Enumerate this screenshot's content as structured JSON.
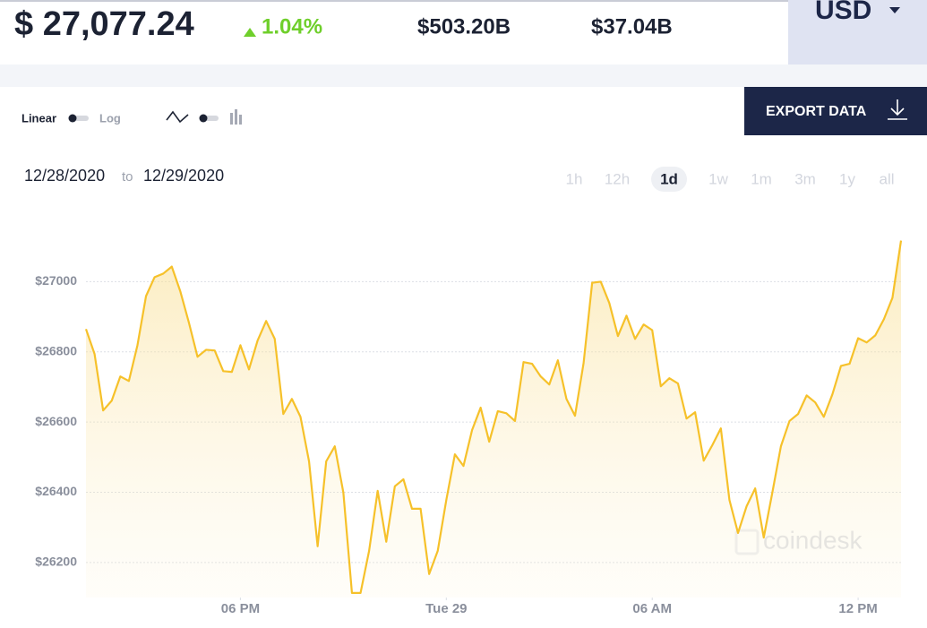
{
  "header": {
    "price": "$ 27,077.24",
    "change": "1.04%",
    "market_cap": "$503.20B",
    "volume": "$37.04B",
    "currency": "USD"
  },
  "controls": {
    "scale_options": [
      "Linear",
      "Log"
    ],
    "export": "EXPORT DATA",
    "date_from": "12/28/2020",
    "date_sep": "to",
    "date_to": "12/29/2020",
    "ranges": [
      "1h",
      "12h",
      "1d",
      "1w",
      "1m",
      "3m",
      "1y",
      "all"
    ],
    "active_range": 2
  },
  "chart_data": {
    "type": "line",
    "color": "#f6c12a",
    "x": [
      13.5,
      13.75,
      14,
      14.25,
      14.5,
      14.75,
      15,
      15.25,
      15.5,
      15.75,
      16,
      16.25,
      16.5,
      16.75,
      17,
      17.25,
      17.5,
      17.75,
      18,
      18.25,
      18.5,
      18.75,
      19,
      19.25,
      19.5,
      19.75,
      20,
      20.25,
      20.5,
      20.75,
      21,
      21.25,
      21.5,
      21.75,
      22,
      22.25,
      22.5,
      22.75,
      23,
      23.25,
      23.5,
      23.75,
      24,
      24.25,
      24.5,
      24.75,
      25,
      25.25,
      25.5,
      25.75,
      26,
      26.25,
      26.5,
      26.75,
      27,
      27.25,
      27.5,
      27.75,
      28,
      28.25,
      28.5,
      28.75,
      29,
      29.25,
      29.5,
      29.75,
      30,
      30.25,
      30.5,
      30.75,
      31,
      31.25,
      31.5,
      31.75,
      32,
      32.25,
      32.5,
      32.75,
      33,
      33.25,
      33.5,
      33.75,
      34,
      34.25,
      34.5,
      34.75,
      35,
      35.25,
      35.5,
      35.75,
      36,
      36.25,
      36.5,
      36.75,
      37,
      37.25
    ],
    "values": [
      26865,
      26794,
      26633,
      26661,
      26730,
      26717,
      26819,
      26959,
      27013,
      27023,
      27043,
      26972,
      26883,
      26786,
      26806,
      26804,
      26745,
      26743,
      26819,
      26750,
      26832,
      26888,
      26837,
      26623,
      26666,
      26615,
      26488,
      26246,
      26488,
      26531,
      26399,
      26113,
      26113,
      26233,
      26404,
      26259,
      26417,
      26437,
      26353,
      26353,
      26167,
      26233,
      26378,
      26508,
      26475,
      26577,
      26641,
      26544,
      26631,
      26625,
      26603,
      26771,
      26766,
      26730,
      26707,
      26776,
      26666,
      26618,
      26768,
      26997,
      27000,
      26939,
      26845,
      26903,
      26837,
      26878,
      26862,
      26702,
      26725,
      26710,
      26610,
      26628,
      26490,
      26534,
      26582,
      26378,
      26284,
      26360,
      26411,
      26271,
      26399,
      26531,
      26603,
      26623,
      26676,
      26656,
      26615,
      26679,
      26760,
      26766,
      26839,
      26827,
      26847,
      26893,
      26954,
      27117
    ],
    "xlim": [
      13.5,
      37.25
    ],
    "xticks": [
      {
        "value": 18,
        "label": "06 PM"
      },
      {
        "value": 24,
        "label": "Tue 29"
      },
      {
        "value": 30,
        "label": "06 AM"
      },
      {
        "value": 36,
        "label": "12 PM"
      }
    ],
    "ylim": [
      26100,
      27190
    ],
    "yticks": [
      {
        "value": 26200,
        "label": "$26200"
      },
      {
        "value": 26400,
        "label": "$26400"
      },
      {
        "value": 26600,
        "label": "$26600"
      },
      {
        "value": 26800,
        "label": "$26800"
      },
      {
        "value": 27000,
        "label": "$27000"
      }
    ],
    "grid": true,
    "watermark": "coindesk"
  }
}
